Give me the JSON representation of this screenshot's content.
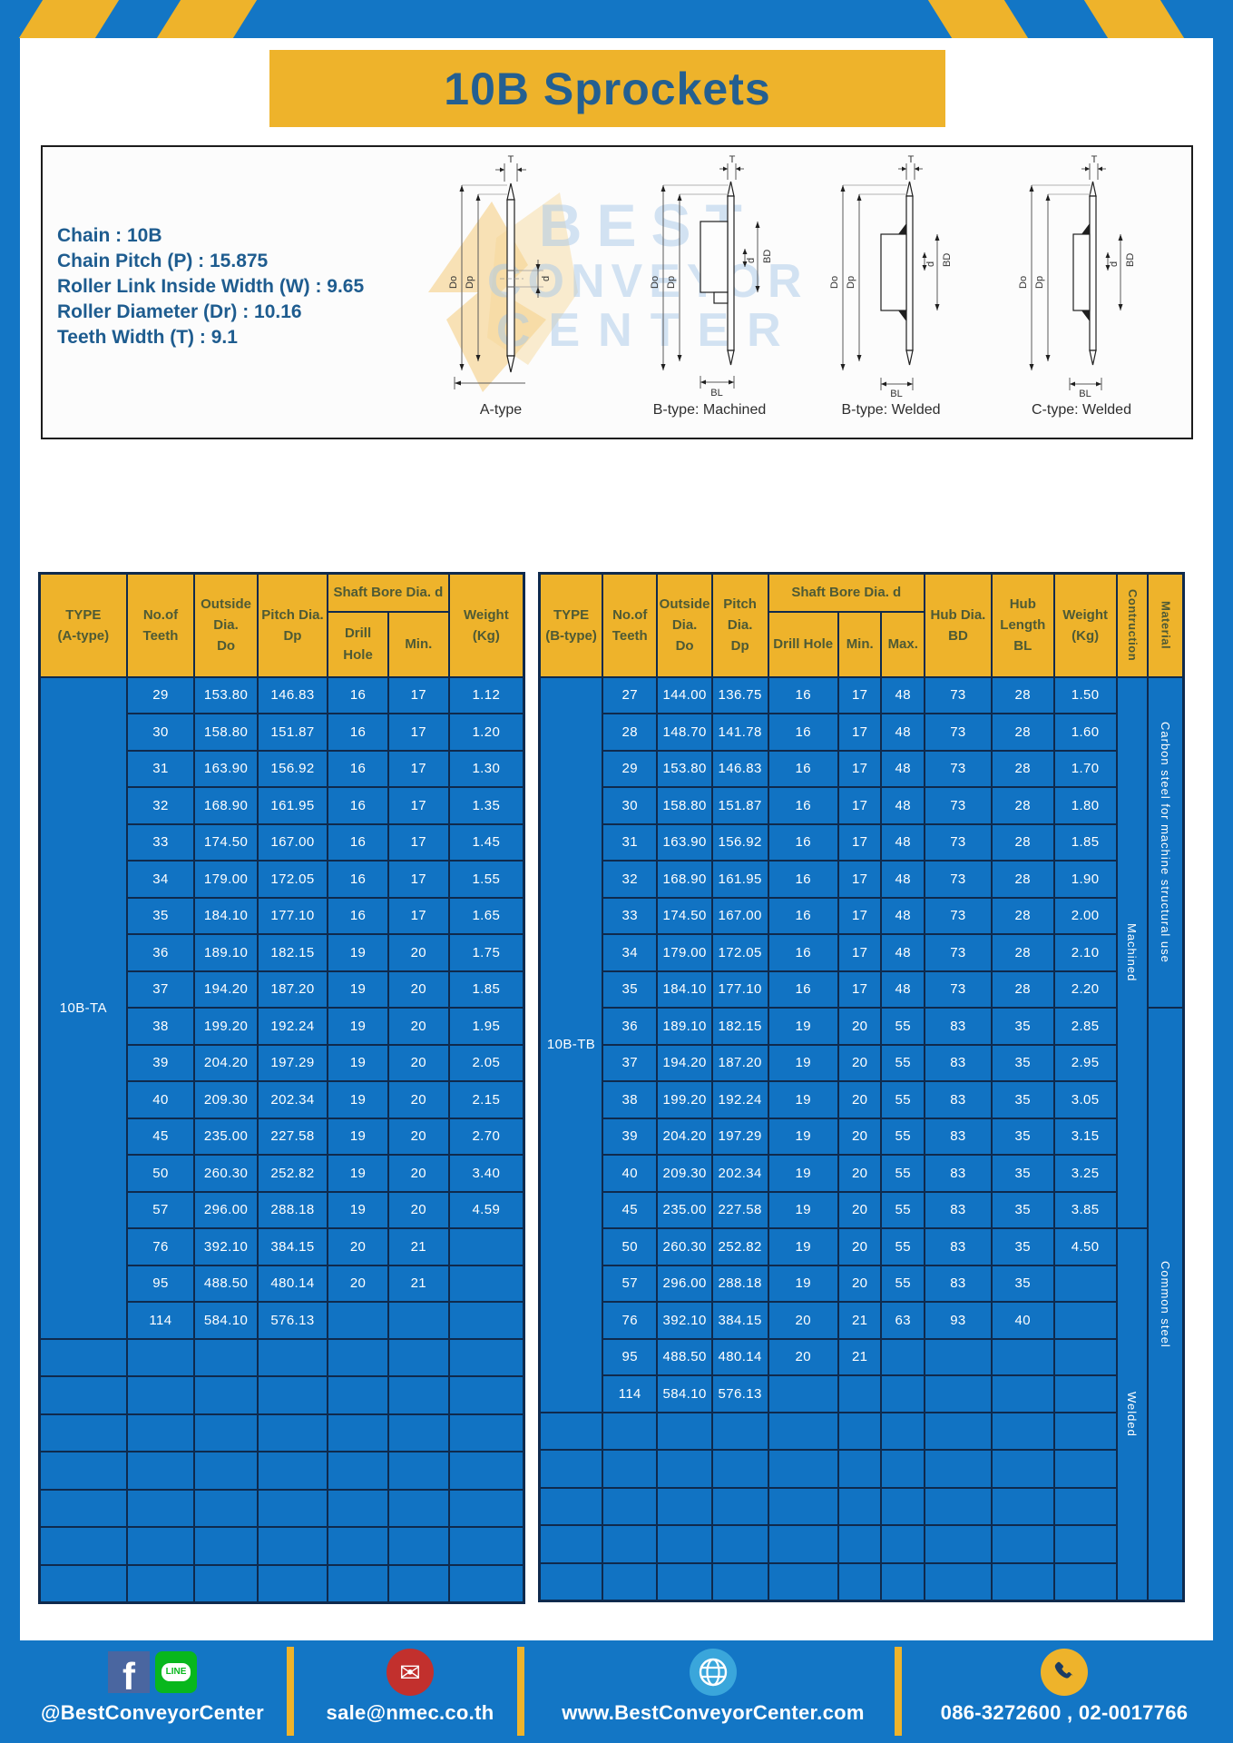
{
  "title": "10B Sprockets",
  "specs": {
    "lines": [
      "Chain : 10B",
      "Chain Pitch (P) : 15.875",
      "Roller Link Inside Width (W) : 9.65",
      "Roller Diameter (Dr) : 10.16",
      "Teeth Width (T) : 9.1"
    ]
  },
  "watermark": {
    "lines": [
      "BEST",
      "CONVEYOR",
      "CENTER"
    ]
  },
  "diagrams": {
    "dim_labels": {
      "t": "T",
      "do": "Do",
      "dp": "Dp",
      "d": "d",
      "bd": "BD",
      "bl": "BL"
    },
    "captions": [
      "A-type",
      "B-type: Machined",
      "B-type: Welded",
      "C-type: Welded"
    ]
  },
  "left_table": {
    "header": {
      "type": "TYPE\n(A-type)",
      "teeth": "No.of\nTeeth",
      "outside": "Outside\nDia.\nDo",
      "pitch": "Pitch Dia.\nDp",
      "shaft_group": "Shaft Bore Dia. d",
      "drill": "Drill Hole",
      "min": "Min.",
      "weight": "Weight\n(Kg)"
    },
    "type_label": "10B-TA",
    "rows": [
      [
        "29",
        "153.80",
        "146.83",
        "16",
        "17",
        "1.12"
      ],
      [
        "30",
        "158.80",
        "151.87",
        "16",
        "17",
        "1.20"
      ],
      [
        "31",
        "163.90",
        "156.92",
        "16",
        "17",
        "1.30"
      ],
      [
        "32",
        "168.90",
        "161.95",
        "16",
        "17",
        "1.35"
      ],
      [
        "33",
        "174.50",
        "167.00",
        "16",
        "17",
        "1.45"
      ],
      [
        "34",
        "179.00",
        "172.05",
        "16",
        "17",
        "1.55"
      ],
      [
        "35",
        "184.10",
        "177.10",
        "16",
        "17",
        "1.65"
      ],
      [
        "36",
        "189.10",
        "182.15",
        "19",
        "20",
        "1.75"
      ],
      [
        "37",
        "194.20",
        "187.20",
        "19",
        "20",
        "1.85"
      ],
      [
        "38",
        "199.20",
        "192.24",
        "19",
        "20",
        "1.95"
      ],
      [
        "39",
        "204.20",
        "197.29",
        "19",
        "20",
        "2.05"
      ],
      [
        "40",
        "209.30",
        "202.34",
        "19",
        "20",
        "2.15"
      ],
      [
        "45",
        "235.00",
        "227.58",
        "19",
        "20",
        "2.70"
      ],
      [
        "50",
        "260.30",
        "252.82",
        "19",
        "20",
        "3.40"
      ],
      [
        "57",
        "296.00",
        "288.18",
        "19",
        "20",
        "4.59"
      ],
      [
        "76",
        "392.10",
        "384.15",
        "20",
        "21",
        ""
      ],
      [
        "95",
        "488.50",
        "480.14",
        "20",
        "21",
        ""
      ],
      [
        "114",
        "584.10",
        "576.13",
        "",
        "",
        ""
      ]
    ],
    "empty_rows": 7
  },
  "right_table": {
    "header": {
      "type": "TYPE\n(B-type)",
      "teeth": "No.of\nTeeth",
      "outside": "Outside\nDia.\nDo",
      "pitch": "Pitch Dia.\nDp",
      "shaft_group": "Shaft Bore Dia. d",
      "drill": "Drill Hole",
      "min": "Min.",
      "max": "Max.",
      "hub_dia": "Hub Dia.\nBD",
      "hub_len": "Hub\nLength\nBL",
      "weight": "Weight\n(Kg)",
      "construction": "Contruction",
      "material": "Material"
    },
    "type_label": "10B-TB",
    "rows": [
      [
        "27",
        "144.00",
        "136.75",
        "16",
        "17",
        "48",
        "73",
        "28",
        "1.50"
      ],
      [
        "28",
        "148.70",
        "141.78",
        "16",
        "17",
        "48",
        "73",
        "28",
        "1.60"
      ],
      [
        "29",
        "153.80",
        "146.83",
        "16",
        "17",
        "48",
        "73",
        "28",
        "1.70"
      ],
      [
        "30",
        "158.80",
        "151.87",
        "16",
        "17",
        "48",
        "73",
        "28",
        "1.80"
      ],
      [
        "31",
        "163.90",
        "156.92",
        "16",
        "17",
        "48",
        "73",
        "28",
        "1.85"
      ],
      [
        "32",
        "168.90",
        "161.95",
        "16",
        "17",
        "48",
        "73",
        "28",
        "1.90"
      ],
      [
        "33",
        "174.50",
        "167.00",
        "16",
        "17",
        "48",
        "73",
        "28",
        "2.00"
      ],
      [
        "34",
        "179.00",
        "172.05",
        "16",
        "17",
        "48",
        "73",
        "28",
        "2.10"
      ],
      [
        "35",
        "184.10",
        "177.10",
        "16",
        "17",
        "48",
        "73",
        "28",
        "2.20"
      ],
      [
        "36",
        "189.10",
        "182.15",
        "19",
        "20",
        "55",
        "83",
        "35",
        "2.85"
      ],
      [
        "37",
        "194.20",
        "187.20",
        "19",
        "20",
        "55",
        "83",
        "35",
        "2.95"
      ],
      [
        "38",
        "199.20",
        "192.24",
        "19",
        "20",
        "55",
        "83",
        "35",
        "3.05"
      ],
      [
        "39",
        "204.20",
        "197.29",
        "19",
        "20",
        "55",
        "83",
        "35",
        "3.15"
      ],
      [
        "40",
        "209.30",
        "202.34",
        "19",
        "20",
        "55",
        "83",
        "35",
        "3.25"
      ],
      [
        "45",
        "235.00",
        "227.58",
        "19",
        "20",
        "55",
        "83",
        "35",
        "3.85"
      ],
      [
        "50",
        "260.30",
        "252.82",
        "19",
        "20",
        "55",
        "83",
        "35",
        "4.50"
      ],
      [
        "57",
        "296.00",
        "288.18",
        "19",
        "20",
        "55",
        "83",
        "35",
        ""
      ],
      [
        "76",
        "392.10",
        "384.15",
        "20",
        "21",
        "63",
        "93",
        "40",
        ""
      ],
      [
        "95",
        "488.50",
        "480.14",
        "20",
        "21",
        "",
        "",
        "",
        ""
      ],
      [
        "114",
        "584.10",
        "576.13",
        "",
        "",
        "",
        "",
        "",
        ""
      ]
    ],
    "empty_rows": 5,
    "construction": [
      {
        "label": "Machined",
        "span": 15
      },
      {
        "label": "Welded",
        "span": 10
      }
    ],
    "material": [
      {
        "label": "Carbon steel for machine structural use",
        "span": 9
      },
      {
        "label": "Common steel",
        "span": 16
      }
    ]
  },
  "footer": {
    "facebook_label": "@BestConveyorCenter",
    "email_label": "sale@nmec.co.th",
    "website_label": "www.BestConveyorCenter.com",
    "phone_label": "086-3272600 , 02-0017766",
    "icons": {
      "facebook_glyph": "f",
      "line_text": "LINE",
      "email_glyph": "✉"
    }
  },
  "colors": {
    "frame_blue": "#1376c5",
    "cell_blue": "#1173c3",
    "accent_yellow": "#eeb32b",
    "border_navy": "#0f2a4d",
    "title_blue": "#245f90",
    "header_text": "#4e5a35"
  }
}
